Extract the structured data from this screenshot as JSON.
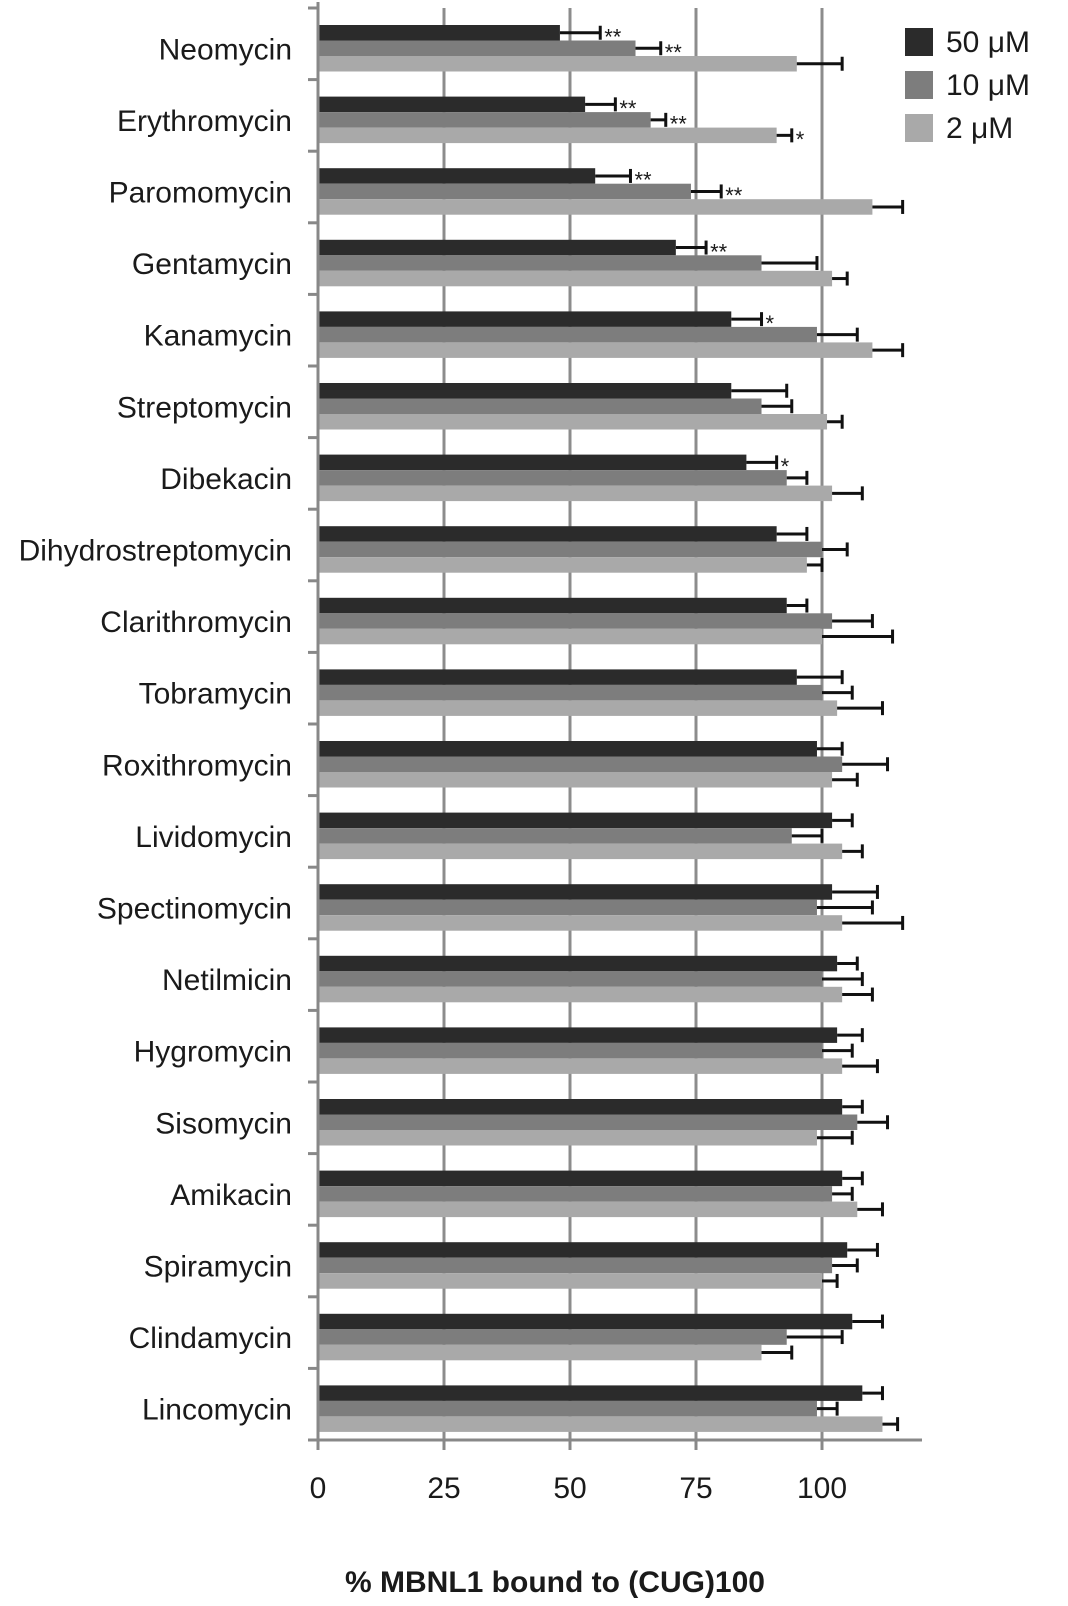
{
  "chart_data": {
    "type": "bar",
    "orientation": "horizontal",
    "categories": [
      "Neomycin",
      "Erythromycin",
      "Paromomycin",
      "Gentamycin",
      "Kanamycin",
      "Streptomycin",
      "Dibekacin",
      "Dihydrostreptomycin",
      "Clarithromycin",
      "Tobramycin",
      "Roxithromycin",
      "Lividomycin",
      "Spectinomycin",
      "Netilmicin",
      "Hygromycin",
      "Sisomycin",
      "Amikacin",
      "Spiramycin",
      "Clindamycin",
      "Lincomycin"
    ],
    "series": [
      {
        "name": "50 μM",
        "color": "#2b2b2b",
        "values": [
          48,
          53,
          55,
          71,
          82,
          82,
          85,
          91,
          93,
          95,
          99,
          102,
          102,
          103,
          103,
          104,
          104,
          105,
          106,
          108
        ],
        "errors": [
          8,
          6,
          7,
          6,
          6,
          11,
          6,
          6,
          4,
          9,
          5,
          4,
          9,
          4,
          5,
          4,
          4,
          6,
          6,
          4
        ]
      },
      {
        "name": "10 μM",
        "color": "#7d7d7d",
        "values": [
          63,
          66,
          74,
          88,
          99,
          88,
          93,
          100,
          102,
          100,
          104,
          94,
          99,
          100,
          100,
          107,
          102,
          102,
          93,
          99
        ],
        "errors": [
          5,
          3,
          6,
          11,
          8,
          6,
          4,
          5,
          8,
          6,
          9,
          6,
          11,
          8,
          6,
          6,
          4,
          5,
          11,
          4
        ]
      },
      {
        "name": "2  μM",
        "color": "#a9a9a9",
        "values": [
          95,
          91,
          110,
          102,
          110,
          101,
          102,
          97,
          100,
          103,
          102,
          104,
          104,
          104,
          104,
          99,
          107,
          100,
          88,
          112
        ],
        "errors": [
          9,
          3,
          6,
          3,
          6,
          3,
          6,
          3,
          14,
          9,
          5,
          4,
          12,
          6,
          7,
          7,
          5,
          3,
          6,
          3
        ]
      }
    ],
    "annotations": [
      {
        "category": "Neomycin",
        "series": "50 μM",
        "text": "**"
      },
      {
        "category": "Neomycin",
        "series": "10 μM",
        "text": "**"
      },
      {
        "category": "Erythromycin",
        "series": "50 μM",
        "text": "**"
      },
      {
        "category": "Erythromycin",
        "series": "10 μM",
        "text": "**"
      },
      {
        "category": "Erythromycin",
        "series": "2  μM",
        "text": "*"
      },
      {
        "category": "Paromomycin",
        "series": "50 μM",
        "text": "**"
      },
      {
        "category": "Paromomycin",
        "series": "10 μM",
        "text": "**"
      },
      {
        "category": "Gentamycin",
        "series": "50 μM",
        "text": "**"
      },
      {
        "category": "Kanamycin",
        "series": "50 μM",
        "text": "*"
      },
      {
        "category": "Dibekacin",
        "series": "50 μM",
        "text": "*"
      }
    ],
    "xlabel": "% MBNL1 bound to (CUG)100",
    "xlim": [
      0,
      120
    ],
    "xticks": [
      0,
      25,
      50,
      75,
      100
    ],
    "xtick_labels": [
      "0",
      "25",
      "50",
      "75",
      "100"
    ],
    "grid": "vertical",
    "legend": "top-right"
  }
}
